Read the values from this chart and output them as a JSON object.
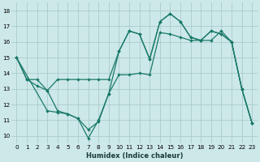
{
  "xlabel": "Humidex (Indice chaleur)",
  "bg_color": "#cde8e8",
  "grid_color": "#aacccc",
  "line_color": "#1a7a6a",
  "xlim": [
    -0.5,
    23.5
  ],
  "ylim": [
    9.5,
    18.5
  ],
  "yticks": [
    10,
    11,
    12,
    13,
    14,
    15,
    16,
    17,
    18
  ],
  "xticks": [
    0,
    1,
    2,
    3,
    4,
    5,
    6,
    7,
    8,
    9,
    10,
    11,
    12,
    13,
    14,
    15,
    16,
    17,
    18,
    19,
    20,
    21,
    22,
    23
  ],
  "series1_x": [
    0,
    1,
    2,
    3,
    4,
    5,
    6,
    7,
    8,
    9,
    10,
    11,
    12,
    13,
    14,
    15,
    16,
    17,
    18,
    19,
    20,
    21,
    22,
    23
  ],
  "series1_y": [
    15.0,
    13.6,
    13.6,
    12.9,
    13.6,
    13.6,
    13.6,
    13.6,
    13.6,
    13.6,
    15.4,
    16.7,
    16.5,
    14.9,
    17.3,
    17.8,
    17.3,
    16.3,
    16.1,
    16.7,
    16.5,
    16.0,
    13.0,
    10.8
  ],
  "series2_x": [
    0,
    1,
    2,
    3,
    4,
    5,
    6,
    7,
    8,
    9,
    10,
    11,
    12,
    13,
    14,
    15,
    16,
    17,
    18,
    19,
    20,
    21,
    22,
    23
  ],
  "series2_y": [
    15.0,
    13.6,
    13.2,
    12.9,
    11.6,
    11.4,
    11.1,
    10.4,
    10.9,
    12.7,
    13.9,
    13.9,
    14.0,
    13.9,
    16.6,
    16.5,
    16.3,
    16.1,
    16.1,
    16.7,
    16.5,
    16.0,
    13.0,
    10.8
  ],
  "series3_x": [
    0,
    3,
    4,
    5,
    6,
    7,
    8,
    9,
    10,
    11,
    12,
    13,
    14,
    15,
    16,
    17,
    18,
    19,
    20,
    21,
    22,
    23
  ],
  "series3_y": [
    15.0,
    11.6,
    11.5,
    11.4,
    11.1,
    9.85,
    11.0,
    12.7,
    15.4,
    16.7,
    16.5,
    14.9,
    17.3,
    17.8,
    17.3,
    16.3,
    16.1,
    16.1,
    16.7,
    16.0,
    13.0,
    10.8
  ],
  "xlabel_fontsize": 6.0,
  "tick_fontsize": 5.2
}
